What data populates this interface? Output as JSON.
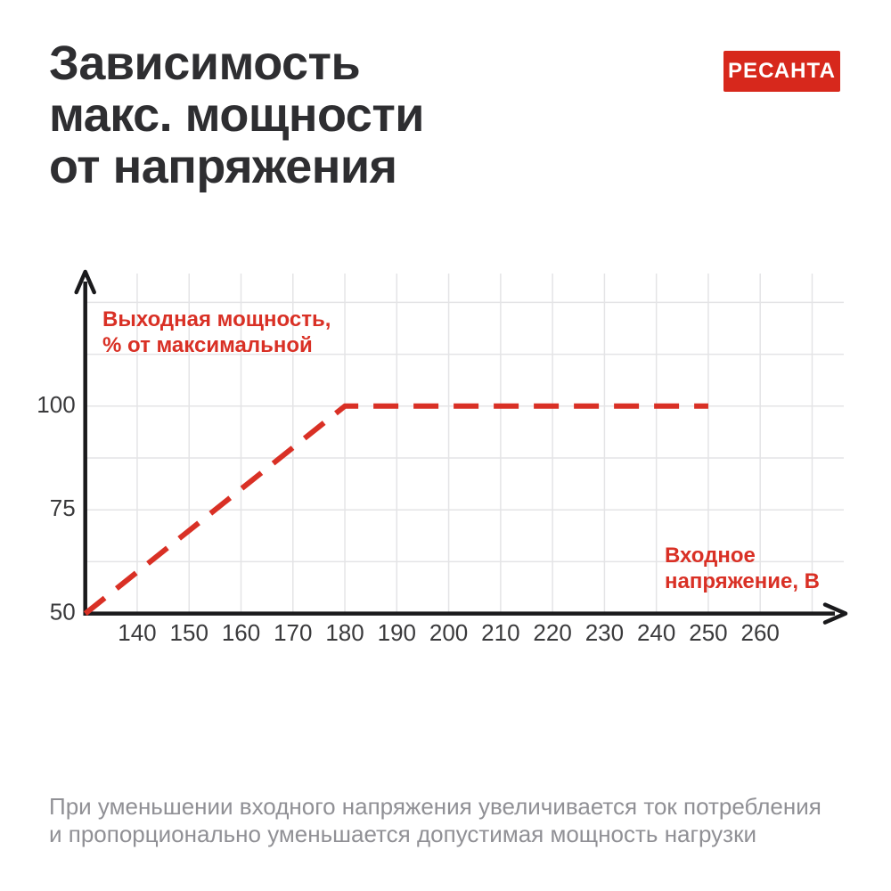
{
  "header": {
    "title_lines": [
      "Зависимость",
      "макс. мощности",
      "от напряжения"
    ],
    "logo_text": "РЕСАНТА"
  },
  "caption_lines": [
    "При уменьшении входного напряжения увеличивается ток потребления",
    "и пропорционально уменьшается допустимая мощность нагрузки"
  ],
  "colors": {
    "logo_red": "#d7281c",
    "line_red": "#d93025",
    "title_text": "#2e2e31",
    "tick_text": "#3a3a3c",
    "grid": "#e4e4e6",
    "axis": "#1a1a1c",
    "caption_text": "#909095",
    "background": "#ffffff"
  },
  "chart_data": {
    "type": "line",
    "title": "Зависимость макс. мощности от напряжения",
    "xlabel": "Входное напряжение, В",
    "ylabel": "Выходная мощность, % от максимальной",
    "xlabel_lines": [
      "Входное",
      "напряжение, В"
    ],
    "ylabel_lines": [
      "Выходная мощность,",
      "% от максимальной"
    ],
    "x_ticks": [
      140,
      150,
      160,
      170,
      180,
      190,
      200,
      210,
      220,
      230,
      240,
      250,
      260
    ],
    "y_ticks": [
      100,
      75,
      50
    ],
    "xlim": [
      130,
      270
    ],
    "ylim": [
      50,
      125
    ],
    "x_grid_step": 10,
    "y_grid_step": 12.5,
    "grid": true,
    "legend": "none",
    "series": [
      {
        "name": "Выходная мощность, % от максимальной",
        "x": [
          130,
          180,
          250
        ],
        "y": [
          50,
          100,
          100
        ],
        "line_style": "dashed",
        "color": "#d93025"
      }
    ]
  }
}
